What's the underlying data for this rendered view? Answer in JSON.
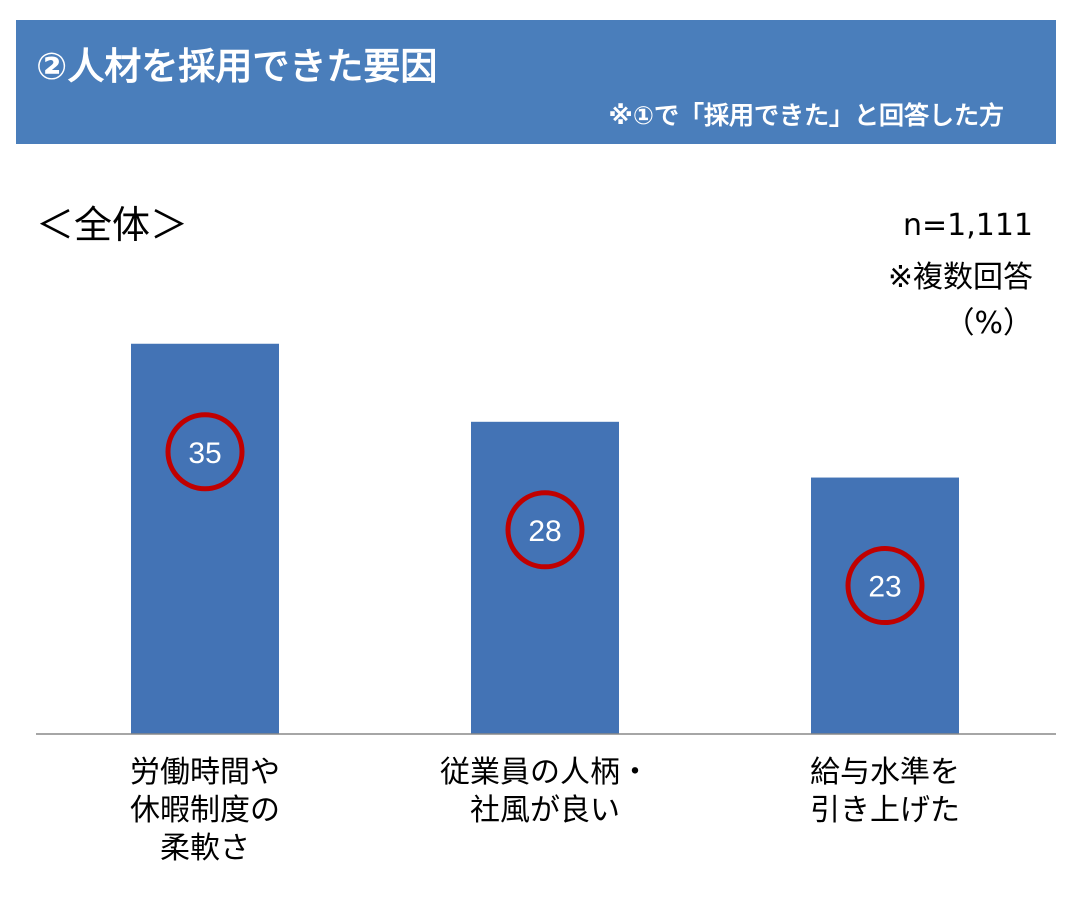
{
  "header": {
    "title": "②人材を採用できた要因",
    "subtitle": "※①で「採用できた」と回答した方"
  },
  "section_label": "＜全体＞",
  "meta": {
    "n": "n=1,111",
    "note": "※複数回答",
    "unit": "（%）"
  },
  "colors": {
    "header_bg": "#4a7ebb",
    "bar": "#4373b5",
    "circle": "#c00000",
    "axis": "#888888"
  },
  "chart_data": {
    "type": "bar",
    "categories": [
      [
        "労働時間や",
        "休暇制度の",
        "柔軟さ"
      ],
      [
        "従業員の人柄・",
        "社風が良い"
      ],
      [
        "給与水準を",
        "引き上げた"
      ]
    ],
    "values": [
      35,
      28,
      23
    ],
    "data_labels": [
      "35",
      "28",
      "23"
    ],
    "unit": "（%）",
    "legend": "none",
    "grid": false
  }
}
